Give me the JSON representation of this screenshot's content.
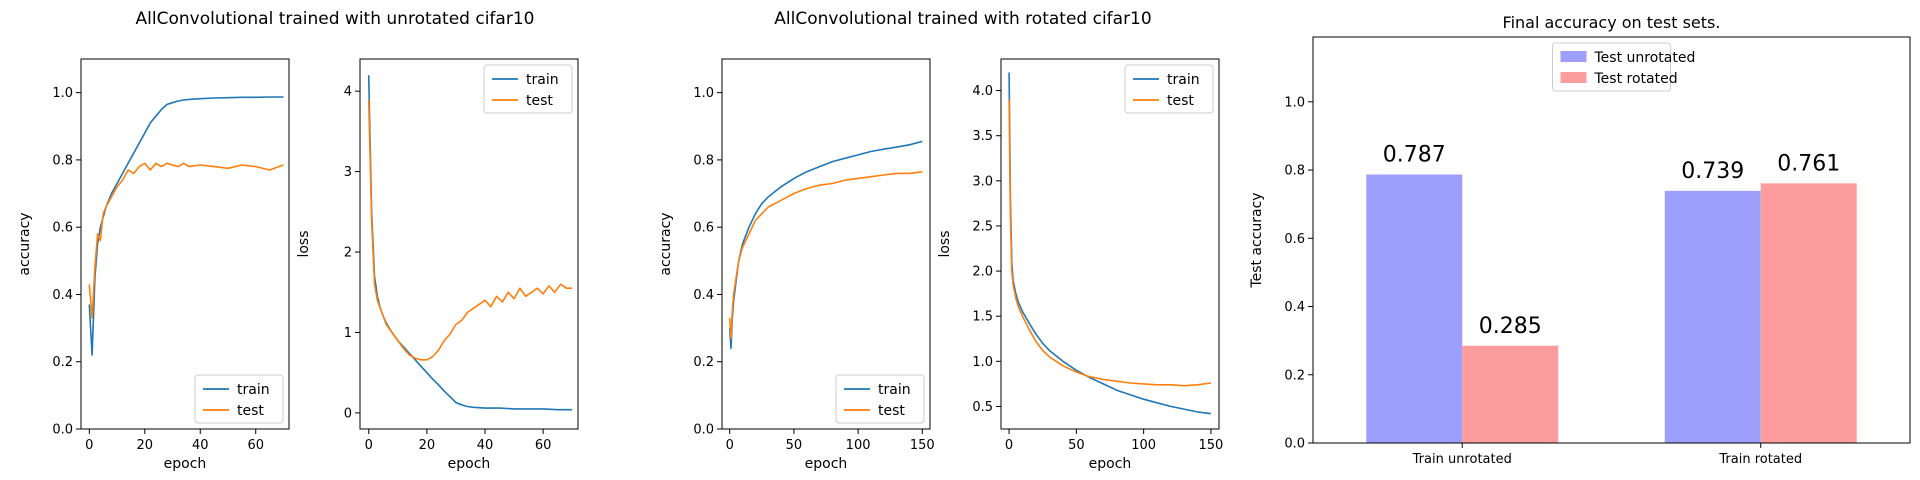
{
  "suptitles": {
    "unrotated": "AllConvolutional trained with unrotated cifar10",
    "rotated": "AllConvolutional trained with rotated cifar10"
  },
  "chart_data": [
    {
      "id": "unrot-acc",
      "type": "line",
      "xlabel": "epoch",
      "ylabel": "accuracy",
      "xlim": [
        -3,
        72
      ],
      "ylim": [
        0,
        1.1
      ],
      "xticks": [
        0,
        20,
        40,
        60
      ],
      "yticks": [
        0.0,
        0.2,
        0.4,
        0.6,
        0.8,
        1.0
      ],
      "ytick_labels": [
        "0.0",
        "0.2",
        "0.4",
        "0.6",
        "0.8",
        "1.0"
      ],
      "legend": "lower-right",
      "series": [
        {
          "name": "train",
          "color": "#1f77b4",
          "x": [
            0,
            1,
            2,
            3,
            4,
            5,
            6,
            8,
            10,
            12,
            14,
            16,
            18,
            20,
            22,
            24,
            26,
            28,
            30,
            32,
            34,
            36,
            40,
            45,
            50,
            55,
            60,
            65,
            70
          ],
          "y": [
            0.37,
            0.22,
            0.45,
            0.55,
            0.6,
            0.63,
            0.66,
            0.7,
            0.73,
            0.76,
            0.79,
            0.82,
            0.85,
            0.88,
            0.91,
            0.93,
            0.95,
            0.965,
            0.97,
            0.975,
            0.978,
            0.98,
            0.982,
            0.984,
            0.985,
            0.986,
            0.986,
            0.987,
            0.987
          ]
        },
        {
          "name": "test",
          "color": "#ff7f0e",
          "x": [
            0,
            1,
            2,
            3,
            4,
            5,
            6,
            8,
            10,
            12,
            14,
            16,
            18,
            20,
            22,
            24,
            26,
            28,
            30,
            32,
            34,
            36,
            40,
            45,
            50,
            55,
            60,
            65,
            70
          ],
          "y": [
            0.43,
            0.33,
            0.48,
            0.58,
            0.56,
            0.64,
            0.66,
            0.69,
            0.72,
            0.74,
            0.77,
            0.76,
            0.78,
            0.79,
            0.77,
            0.79,
            0.78,
            0.79,
            0.785,
            0.78,
            0.79,
            0.78,
            0.785,
            0.78,
            0.775,
            0.785,
            0.78,
            0.77,
            0.785
          ]
        }
      ]
    },
    {
      "id": "unrot-loss",
      "type": "line",
      "xlabel": "epoch",
      "ylabel": "loss",
      "xlim": [
        -3,
        72
      ],
      "ylim": [
        -0.2,
        4.4
      ],
      "xticks": [
        0,
        20,
        40,
        60
      ],
      "yticks": [
        0,
        1,
        2,
        3,
        4
      ],
      "ytick_labels": [
        "0",
        "1",
        "2",
        "3",
        "4"
      ],
      "legend": "top-right",
      "series": [
        {
          "name": "train",
          "color": "#1f77b4",
          "x": [
            0,
            1,
            2,
            3,
            4,
            5,
            6,
            8,
            10,
            12,
            14,
            16,
            18,
            20,
            22,
            24,
            26,
            28,
            30,
            32,
            34,
            36,
            40,
            45,
            50,
            55,
            60,
            65,
            70
          ],
          "y": [
            4.2,
            2.5,
            1.7,
            1.45,
            1.3,
            1.2,
            1.12,
            1.0,
            0.9,
            0.82,
            0.74,
            0.66,
            0.58,
            0.5,
            0.42,
            0.35,
            0.27,
            0.2,
            0.13,
            0.1,
            0.08,
            0.07,
            0.06,
            0.06,
            0.05,
            0.05,
            0.05,
            0.04,
            0.04
          ]
        },
        {
          "name": "test",
          "color": "#ff7f0e",
          "x": [
            0,
            1,
            2,
            3,
            4,
            5,
            6,
            8,
            10,
            12,
            14,
            16,
            18,
            20,
            22,
            24,
            26,
            28,
            30,
            32,
            34,
            36,
            38,
            40,
            42,
            44,
            46,
            48,
            50,
            52,
            54,
            56,
            58,
            60,
            62,
            64,
            66,
            68,
            70
          ],
          "y": [
            3.9,
            2.4,
            1.6,
            1.4,
            1.3,
            1.2,
            1.1,
            1.0,
            0.9,
            0.8,
            0.72,
            0.68,
            0.66,
            0.66,
            0.7,
            0.78,
            0.9,
            0.98,
            1.1,
            1.15,
            1.25,
            1.3,
            1.35,
            1.4,
            1.32,
            1.45,
            1.38,
            1.5,
            1.42,
            1.55,
            1.45,
            1.5,
            1.55,
            1.48,
            1.58,
            1.5,
            1.6,
            1.55,
            1.55
          ]
        }
      ]
    },
    {
      "id": "rot-acc",
      "type": "line",
      "xlabel": "epoch",
      "ylabel": "accuracy",
      "xlim": [
        -6,
        156
      ],
      "ylim": [
        0,
        1.1
      ],
      "xticks": [
        0,
        50,
        100,
        150
      ],
      "yticks": [
        0.0,
        0.2,
        0.4,
        0.6,
        0.8,
        1.0
      ],
      "ytick_labels": [
        "0.0",
        "0.2",
        "0.4",
        "0.6",
        "0.8",
        "1.0"
      ],
      "legend": "lower-right",
      "series": [
        {
          "name": "train",
          "color": "#1f77b4",
          "x": [
            0,
            1,
            2,
            3,
            5,
            7,
            10,
            15,
            20,
            25,
            30,
            40,
            50,
            60,
            70,
            80,
            90,
            100,
            110,
            120,
            130,
            140,
            150
          ],
          "y": [
            0.3,
            0.24,
            0.33,
            0.38,
            0.44,
            0.5,
            0.55,
            0.6,
            0.64,
            0.67,
            0.69,
            0.72,
            0.745,
            0.765,
            0.78,
            0.795,
            0.805,
            0.815,
            0.825,
            0.832,
            0.838,
            0.845,
            0.855
          ]
        },
        {
          "name": "test",
          "color": "#ff7f0e",
          "x": [
            0,
            1,
            2,
            3,
            5,
            7,
            10,
            15,
            20,
            25,
            30,
            40,
            50,
            60,
            70,
            80,
            90,
            100,
            110,
            120,
            130,
            140,
            150
          ],
          "y": [
            0.33,
            0.27,
            0.35,
            0.4,
            0.45,
            0.5,
            0.54,
            0.58,
            0.62,
            0.64,
            0.66,
            0.68,
            0.7,
            0.715,
            0.725,
            0.73,
            0.74,
            0.745,
            0.75,
            0.755,
            0.76,
            0.76,
            0.765
          ]
        }
      ]
    },
    {
      "id": "rot-loss",
      "type": "line",
      "xlabel": "epoch",
      "ylabel": "loss",
      "xlim": [
        -6,
        156
      ],
      "ylim": [
        0.25,
        4.35
      ],
      "xticks": [
        0,
        50,
        100,
        150
      ],
      "yticks": [
        0.5,
        1.0,
        1.5,
        2.0,
        2.5,
        3.0,
        3.5,
        4.0
      ],
      "ytick_labels": [
        "0.5",
        "1.0",
        "1.5",
        "2.0",
        "2.5",
        "3.0",
        "3.5",
        "4.0"
      ],
      "legend": "top-right",
      "series": [
        {
          "name": "train",
          "color": "#1f77b4",
          "x": [
            0,
            1,
            2,
            3,
            5,
            7,
            10,
            15,
            20,
            25,
            30,
            40,
            50,
            60,
            70,
            80,
            90,
            100,
            110,
            120,
            130,
            140,
            150
          ],
          "y": [
            4.2,
            2.8,
            2.1,
            1.9,
            1.75,
            1.65,
            1.55,
            1.42,
            1.3,
            1.2,
            1.12,
            1.0,
            0.9,
            0.82,
            0.75,
            0.68,
            0.63,
            0.58,
            0.54,
            0.5,
            0.47,
            0.44,
            0.42
          ]
        },
        {
          "name": "test",
          "color": "#ff7f0e",
          "x": [
            0,
            1,
            2,
            3,
            5,
            7,
            10,
            15,
            20,
            25,
            30,
            40,
            50,
            60,
            70,
            80,
            90,
            100,
            110,
            120,
            130,
            140,
            150
          ],
          "y": [
            3.9,
            2.6,
            2.0,
            1.85,
            1.7,
            1.6,
            1.5,
            1.35,
            1.22,
            1.12,
            1.05,
            0.95,
            0.88,
            0.83,
            0.8,
            0.78,
            0.76,
            0.75,
            0.74,
            0.74,
            0.73,
            0.74,
            0.76
          ]
        }
      ]
    },
    {
      "id": "final-acc",
      "type": "bar",
      "title": "Final accuracy on test sets.",
      "ylabel": "Test accuracy",
      "xlabel": "",
      "categories": [
        "Train unrotated",
        "Train rotated"
      ],
      "ylim": [
        0,
        1.19
      ],
      "yticks": [
        0.0,
        0.2,
        0.4,
        0.6,
        0.8,
        1.0
      ],
      "ytick_labels": [
        "0.0",
        "0.2",
        "0.4",
        "0.6",
        "0.8",
        "1.0"
      ],
      "legend": "top-center",
      "series": [
        {
          "name": "Test unrotated",
          "color": "#9e9efc",
          "values": [
            0.787,
            0.739
          ],
          "labels": [
            "0.787",
            "0.739"
          ]
        },
        {
          "name": "Test rotated",
          "color": "#fd9c9c",
          "values": [
            0.285,
            0.761
          ],
          "labels": [
            "0.285",
            "0.761"
          ]
        }
      ]
    }
  ]
}
